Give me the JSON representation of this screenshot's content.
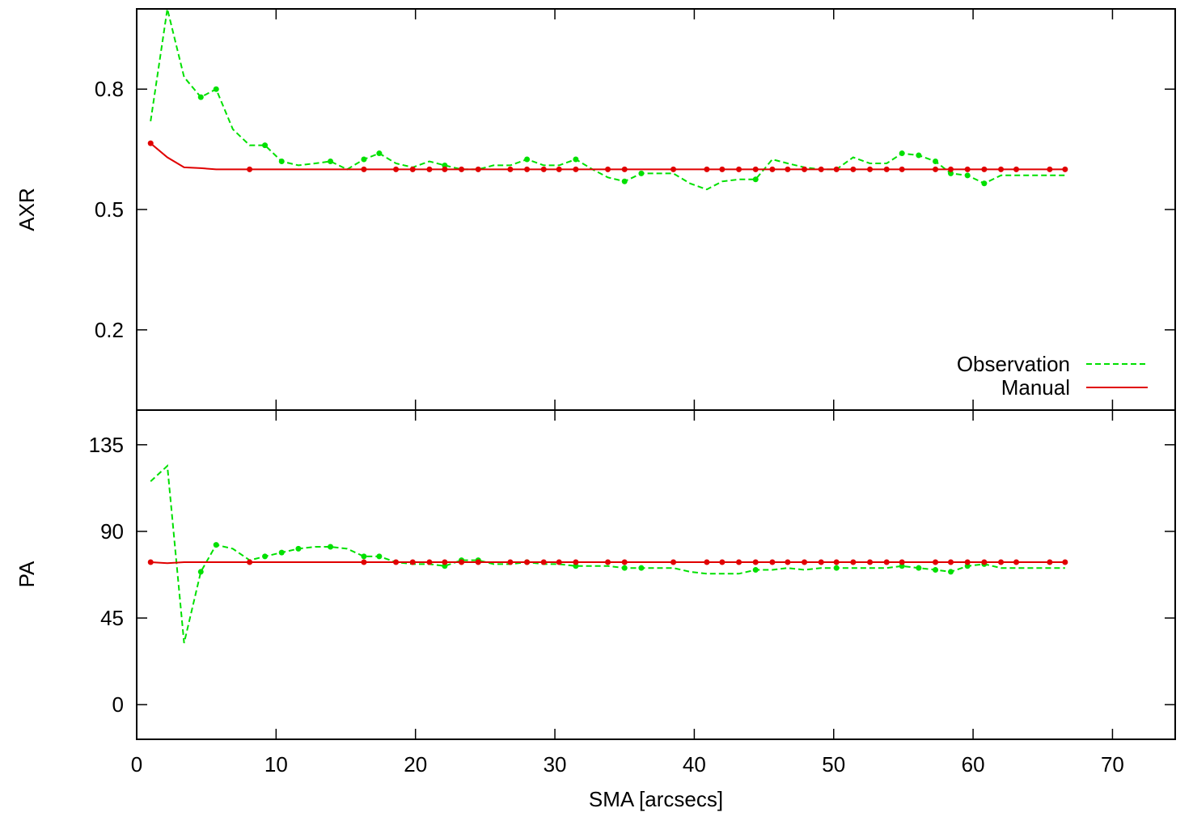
{
  "chart_data": [
    {
      "type": "line",
      "title": "",
      "xlabel": "",
      "ylabel": "AXR",
      "xlim": [
        0,
        74.5
      ],
      "ylim": [
        0,
        1
      ],
      "xticks": [
        0,
        10,
        20,
        30,
        40,
        50,
        60,
        70
      ],
      "yticks": [
        0.2,
        0.5,
        0.8
      ],
      "ytick_labels": [
        "0.2",
        "0.5",
        "0.8"
      ],
      "legend": {
        "position": "bottom-right",
        "entries": [
          "Observation",
          "Manual"
        ]
      },
      "series": [
        {
          "name": "Observation",
          "color": "#00e000",
          "style": "dashed",
          "x": [
            1.0,
            2.2,
            3.4,
            4.6,
            5.7,
            6.9,
            8.1,
            9.2,
            10.4,
            11.6,
            12.8,
            13.9,
            15.1,
            16.3,
            17.4,
            18.6,
            19.8,
            21.0,
            22.1,
            23.3,
            24.5,
            25.6,
            26.8,
            28.0,
            29.2,
            30.3,
            31.5,
            32.7,
            33.8,
            35.0,
            36.2,
            37.4,
            38.5,
            39.7,
            40.9,
            42.0,
            43.2,
            44.4,
            45.6,
            46.7,
            47.9,
            49.1,
            50.2,
            51.4,
            52.6,
            53.8,
            54.9,
            56.1,
            57.3,
            58.4,
            59.6,
            60.8,
            62.0,
            63.1,
            64.3,
            65.5,
            66.6
          ],
          "y": [
            0.72,
            1.0,
            0.83,
            0.78,
            0.8,
            0.7,
            0.66,
            0.66,
            0.62,
            0.61,
            0.615,
            0.62,
            0.6,
            0.625,
            0.64,
            0.615,
            0.605,
            0.62,
            0.61,
            0.6,
            0.6,
            0.61,
            0.61,
            0.625,
            0.61,
            0.61,
            0.625,
            0.6,
            0.58,
            0.57,
            0.59,
            0.59,
            0.59,
            0.565,
            0.55,
            0.57,
            0.575,
            0.575,
            0.625,
            0.615,
            0.605,
            0.6,
            0.6,
            0.63,
            0.615,
            0.615,
            0.64,
            0.635,
            0.62,
            0.59,
            0.585,
            0.565,
            0.585,
            0.585,
            0.585,
            0.585,
            0.585
          ],
          "markers_x": [
            4.6,
            5.7,
            9.2,
            10.4,
            13.9,
            16.3,
            17.4,
            22.1,
            28.0,
            31.5,
            35.0,
            36.2,
            44.4,
            54.9,
            56.1,
            57.3,
            58.4,
            59.6,
            60.8
          ]
        },
        {
          "name": "Manual",
          "color": "#e00000",
          "style": "solid",
          "x": [
            1.0,
            2.2,
            3.4,
            4.6,
            5.7,
            8.1,
            16.3,
            18.6,
            19.8,
            21.0,
            22.1,
            23.3,
            24.5,
            26.8,
            28.0,
            29.2,
            30.3,
            31.5,
            33.8,
            35.0,
            38.5,
            40.9,
            42.0,
            43.2,
            44.4,
            45.6,
            46.7,
            47.9,
            49.1,
            50.2,
            51.4,
            52.6,
            53.8,
            54.9,
            57.3,
            58.4,
            59.6,
            60.8,
            62.0,
            63.1,
            65.5,
            66.6
          ],
          "y": [
            0.665,
            0.63,
            0.605,
            0.603,
            0.6,
            0.6,
            0.6,
            0.6,
            0.6,
            0.6,
            0.6,
            0.6,
            0.6,
            0.6,
            0.6,
            0.6,
            0.6,
            0.6,
            0.6,
            0.6,
            0.6,
            0.6,
            0.6,
            0.6,
            0.6,
            0.6,
            0.6,
            0.6,
            0.6,
            0.6,
            0.6,
            0.6,
            0.6,
            0.6,
            0.6,
            0.6,
            0.6,
            0.6,
            0.6,
            0.6,
            0.6,
            0.6
          ],
          "markers_x": [
            1.0,
            8.1,
            16.3,
            18.6,
            19.8,
            21.0,
            22.1,
            23.3,
            24.5,
            26.8,
            28.0,
            29.2,
            30.3,
            31.5,
            33.8,
            35.0,
            38.5,
            40.9,
            42.0,
            43.2,
            44.4,
            45.6,
            46.7,
            47.9,
            49.1,
            50.2,
            51.4,
            52.6,
            53.8,
            54.9,
            57.3,
            58.4,
            59.6,
            60.8,
            62.0,
            63.1,
            65.5,
            66.6
          ]
        }
      ]
    },
    {
      "type": "line",
      "title": "",
      "xlabel": "SMA [arcsecs]",
      "ylabel": "PA",
      "xlim": [
        0,
        74.5
      ],
      "ylim": [
        -18,
        153
      ],
      "xticks": [
        0,
        10,
        20,
        30,
        40,
        50,
        60,
        70
      ],
      "xtick_labels": [
        "0",
        "10",
        "20",
        "30",
        "40",
        "50",
        "60",
        "70"
      ],
      "yticks": [
        0,
        45,
        90,
        135
      ],
      "ytick_labels": [
        "0",
        "45",
        "90",
        "135"
      ],
      "series": [
        {
          "name": "Observation",
          "color": "#00e000",
          "style": "dashed",
          "x": [
            1.0,
            2.2,
            3.4,
            4.6,
            5.7,
            6.9,
            8.1,
            9.2,
            10.4,
            11.6,
            12.8,
            13.9,
            15.1,
            16.3,
            17.4,
            18.6,
            19.8,
            21.0,
            22.1,
            23.3,
            24.5,
            25.6,
            26.8,
            28.0,
            29.2,
            30.3,
            31.5,
            32.7,
            33.8,
            35.0,
            36.2,
            37.4,
            38.5,
            39.7,
            40.9,
            42.0,
            43.2,
            44.4,
            45.6,
            46.7,
            47.9,
            49.1,
            50.2,
            51.4,
            52.6,
            53.8,
            54.9,
            56.1,
            57.3,
            58.4,
            59.6,
            60.8,
            62.0,
            63.1,
            64.3,
            65.5,
            66.6
          ],
          "y": [
            116,
            124,
            32,
            69,
            83,
            81,
            75,
            77,
            79,
            81,
            82,
            82,
            81,
            77,
            77,
            74,
            73,
            73,
            72,
            75,
            75,
            73,
            73,
            74,
            73,
            73,
            72,
            72,
            72,
            71,
            71,
            71,
            71,
            69,
            68,
            68,
            68,
            70,
            70,
            71,
            70,
            71,
            71,
            71,
            71,
            71,
            72,
            71,
            70,
            69,
            72,
            73,
            71,
            71,
            71,
            71,
            71
          ],
          "markers_x": [
            4.6,
            5.7,
            9.2,
            10.4,
            11.6,
            13.9,
            16.3,
            17.4,
            22.1,
            23.3,
            24.5,
            28.0,
            31.5,
            35.0,
            36.2,
            44.4,
            50.2,
            54.9,
            56.1,
            57.3,
            58.4,
            59.6,
            60.8
          ]
        },
        {
          "name": "Manual",
          "color": "#e00000",
          "style": "solid",
          "x": [
            1.0,
            2.2,
            3.4,
            4.6,
            5.7,
            8.1,
            16.3,
            18.6,
            19.8,
            21.0,
            22.1,
            23.3,
            24.5,
            26.8,
            28.0,
            29.2,
            30.3,
            31.5,
            33.8,
            35.0,
            38.5,
            40.9,
            42.0,
            43.2,
            44.4,
            45.6,
            46.7,
            47.9,
            49.1,
            50.2,
            51.4,
            52.6,
            53.8,
            54.9,
            57.3,
            58.4,
            59.6,
            60.8,
            62.0,
            63.1,
            65.5,
            66.6
          ],
          "y": [
            74,
            73.5,
            74,
            74,
            74,
            74,
            74,
            74,
            74,
            74,
            74,
            74,
            74,
            74,
            74,
            74,
            74,
            74,
            74,
            74,
            74,
            74,
            74,
            74,
            74,
            74,
            74,
            74,
            74,
            74,
            74,
            74,
            74,
            74,
            74,
            74,
            74,
            74,
            74,
            74,
            74,
            74
          ],
          "markers_x": [
            1.0,
            8.1,
            16.3,
            18.6,
            19.8,
            21.0,
            22.1,
            23.3,
            24.5,
            26.8,
            28.0,
            29.2,
            30.3,
            31.5,
            33.8,
            35.0,
            38.5,
            40.9,
            42.0,
            43.2,
            44.4,
            45.6,
            46.7,
            47.9,
            49.1,
            50.2,
            51.4,
            52.6,
            53.8,
            54.9,
            57.3,
            58.4,
            59.6,
            60.8,
            62.0,
            63.1,
            65.5,
            66.6
          ]
        }
      ]
    }
  ]
}
